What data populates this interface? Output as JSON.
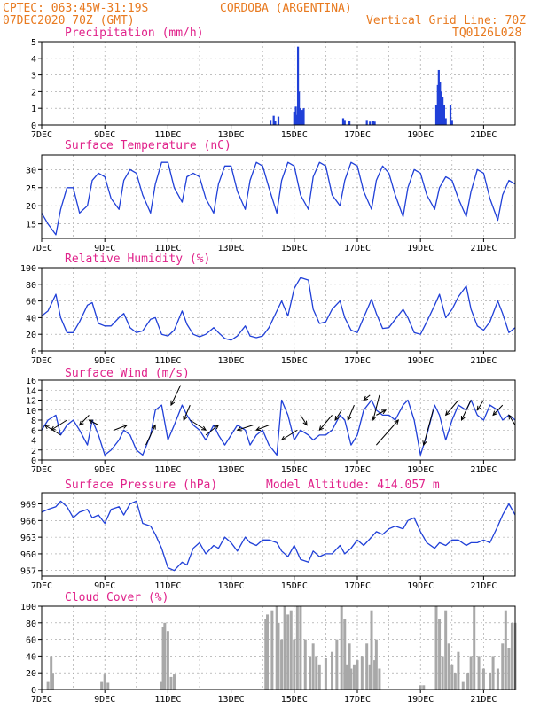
{
  "header": {
    "line1_left": "CPTEC:   063:45W-31:19S",
    "line1_right": "CORDOBA (ARGENTINA)",
    "line2_left": "07DEC2020 70Z (GMT)",
    "line2_right": "Vertical Grid Line: 70Z",
    "line3_right": "TQ0126L028"
  },
  "colors": {
    "header": "#e87a20",
    "panel_title": "#e0218a",
    "series_line": "#2040d8",
    "cloud_bar": "#a8a8a8"
  },
  "x_axis": {
    "tick_labels": [
      "7DEC",
      "9DEC",
      "11DEC",
      "13DEC",
      "15DEC",
      "17DEC",
      "19DEC",
      "21DEC"
    ],
    "tick_days": [
      7,
      9,
      11,
      13,
      15,
      17,
      19,
      21
    ],
    "range_days": [
      7,
      22
    ],
    "grid": "dotted vertical lines at 00Z each day"
  },
  "chart_data": [
    {
      "type": "bar",
      "title": "Precipitation (mm/h)",
      "ylim": [
        0,
        5
      ],
      "yticks": [
        0,
        1,
        2,
        3,
        4,
        5
      ],
      "color": "#2040d8",
      "x_days": [
        14.25,
        14.35,
        14.4,
        14.5,
        15.0,
        15.05,
        15.08,
        15.12,
        15.15,
        15.2,
        15.25,
        15.3,
        16.55,
        16.6,
        16.75,
        17.3,
        17.4,
        17.5,
        17.55,
        19.5,
        19.55,
        19.58,
        19.62,
        19.66,
        19.7,
        19.75,
        19.8,
        19.95,
        20.0
      ],
      "values": [
        0.3,
        0.55,
        0.25,
        0.5,
        0.8,
        1.1,
        0.6,
        4.7,
        2.0,
        1.0,
        0.9,
        1.0,
        0.4,
        0.3,
        0.25,
        0.3,
        0.2,
        0.25,
        0.2,
        1.2,
        2.4,
        3.3,
        2.6,
        2.0,
        1.7,
        1.2,
        0.4,
        1.2,
        0.3
      ]
    },
    {
      "type": "line",
      "title": "Surface Temperature (nC)",
      "ylim": [
        11,
        34
      ],
      "yticks": [
        15,
        20,
        25,
        30
      ],
      "color": "#2040d8",
      "x_days": [
        7.0,
        7.2,
        7.45,
        7.6,
        7.8,
        8.0,
        8.2,
        8.45,
        8.6,
        8.8,
        9.0,
        9.2,
        9.45,
        9.6,
        9.8,
        10.0,
        10.2,
        10.45,
        10.6,
        10.8,
        11.0,
        11.2,
        11.45,
        11.6,
        11.8,
        12.0,
        12.2,
        12.45,
        12.6,
        12.8,
        13.0,
        13.2,
        13.45,
        13.6,
        13.8,
        14.0,
        14.2,
        14.45,
        14.6,
        14.8,
        15.0,
        15.2,
        15.45,
        15.6,
        15.8,
        16.0,
        16.2,
        16.45,
        16.6,
        16.8,
        17.0,
        17.2,
        17.45,
        17.6,
        17.8,
        18.0,
        18.2,
        18.45,
        18.6,
        18.8,
        19.0,
        19.2,
        19.45,
        19.6,
        19.8,
        20.0,
        20.2,
        20.45,
        20.6,
        20.8,
        21.0,
        21.2,
        21.45,
        21.6,
        21.8,
        22.0
      ],
      "values": [
        18,
        15,
        12,
        19,
        25,
        25,
        18,
        20,
        27,
        29,
        28,
        22,
        19,
        27,
        30,
        29,
        23,
        18,
        26,
        32,
        32,
        25,
        21,
        28,
        29,
        28,
        22,
        18,
        26,
        31,
        31,
        24,
        19,
        27,
        32,
        31,
        25,
        18,
        27,
        32,
        31,
        23,
        19,
        28,
        32,
        31,
        23,
        20,
        27,
        32,
        31,
        24,
        19,
        27,
        31,
        29,
        23,
        17,
        25,
        30,
        29,
        23,
        19,
        25,
        28,
        27,
        22,
        17,
        24,
        30,
        29,
        22,
        16,
        23,
        27,
        26
      ]
    },
    {
      "type": "line",
      "title": "Relative Humidity (%)",
      "ylim": [
        0,
        100
      ],
      "yticks": [
        0,
        20,
        40,
        60,
        80,
        100
      ],
      "color": "#2040d8",
      "x_days": [
        7.0,
        7.2,
        7.45,
        7.6,
        7.8,
        8.0,
        8.2,
        8.45,
        8.6,
        8.8,
        9.0,
        9.2,
        9.45,
        9.6,
        9.8,
        10.0,
        10.2,
        10.45,
        10.6,
        10.8,
        11.0,
        11.2,
        11.45,
        11.6,
        11.8,
        12.0,
        12.2,
        12.45,
        12.6,
        12.8,
        13.0,
        13.2,
        13.45,
        13.6,
        13.8,
        14.0,
        14.2,
        14.45,
        14.6,
        14.8,
        15.0,
        15.2,
        15.45,
        15.6,
        15.8,
        16.0,
        16.2,
        16.45,
        16.6,
        16.8,
        17.0,
        17.2,
        17.45,
        17.6,
        17.8,
        18.0,
        18.2,
        18.45,
        18.6,
        18.8,
        19.0,
        19.2,
        19.45,
        19.6,
        19.8,
        20.0,
        20.2,
        20.45,
        20.6,
        20.8,
        21.0,
        21.2,
        21.45,
        21.6,
        21.8,
        22.0
      ],
      "values": [
        42,
        48,
        68,
        40,
        22,
        22,
        35,
        55,
        58,
        33,
        30,
        30,
        40,
        45,
        28,
        22,
        24,
        38,
        40,
        20,
        18,
        25,
        48,
        32,
        20,
        17,
        20,
        28,
        22,
        15,
        13,
        18,
        30,
        18,
        16,
        18,
        28,
        48,
        60,
        42,
        75,
        88,
        85,
        50,
        33,
        35,
        50,
        60,
        40,
        25,
        22,
        40,
        62,
        45,
        27,
        28,
        38,
        50,
        40,
        22,
        20,
        35,
        55,
        68,
        40,
        50,
        65,
        78,
        50,
        30,
        25,
        35,
        60,
        45,
        22,
        28
      ]
    },
    {
      "type": "line",
      "title": "Surface Wind (m/s)",
      "ylim": [
        0,
        16
      ],
      "yticks": [
        0,
        2,
        4,
        6,
        8,
        10,
        12,
        14,
        16
      ],
      "color": "#2040d8",
      "x_days": [
        7.0,
        7.2,
        7.45,
        7.6,
        7.8,
        8.0,
        8.2,
        8.45,
        8.6,
        8.8,
        9.0,
        9.2,
        9.45,
        9.6,
        9.8,
        10.0,
        10.2,
        10.45,
        10.6,
        10.8,
        11.0,
        11.2,
        11.45,
        11.6,
        11.8,
        12.0,
        12.2,
        12.45,
        12.6,
        12.8,
        13.0,
        13.2,
        13.45,
        13.6,
        13.8,
        14.0,
        14.2,
        14.45,
        14.6,
        14.8,
        15.0,
        15.2,
        15.45,
        15.6,
        15.8,
        16.0,
        16.2,
        16.45,
        16.6,
        16.8,
        17.0,
        17.2,
        17.45,
        17.6,
        17.8,
        18.0,
        18.2,
        18.45,
        18.6,
        18.8,
        19.0,
        19.2,
        19.45,
        19.6,
        19.8,
        20.0,
        20.2,
        20.45,
        20.6,
        20.8,
        21.0,
        21.2,
        21.45,
        21.6,
        21.8,
        22.0
      ],
      "values": [
        6,
        8,
        9,
        5,
        7,
        8,
        6,
        3,
        8,
        5,
        1,
        2,
        4,
        6,
        5,
        2,
        1,
        5,
        10,
        11,
        4,
        7,
        11,
        9,
        7,
        6,
        4,
        7,
        5,
        3,
        5,
        7,
        6,
        3,
        5,
        6,
        3,
        1,
        12,
        9,
        4,
        6,
        5,
        4,
        5,
        5,
        6,
        9,
        8,
        3,
        5,
        10,
        12,
        10,
        9,
        9,
        8,
        11,
        12,
        8,
        1,
        5,
        11,
        9,
        4,
        8,
        11,
        10,
        12,
        9,
        8,
        11,
        10,
        8,
        9,
        8
      ],
      "arrows_note": "black wind direction arrows drawn along the series"
    },
    {
      "type": "line",
      "title": "Surface Pressure (hPa)",
      "annotation": "Model Altitude: 414.057 m",
      "ylim": [
        956,
        971
      ],
      "yticks": [
        957,
        960,
        963,
        966,
        969
      ],
      "color": "#2040d8",
      "x_days": [
        7.0,
        7.2,
        7.45,
        7.6,
        7.8,
        8.0,
        8.2,
        8.45,
        8.6,
        8.8,
        9.0,
        9.2,
        9.45,
        9.6,
        9.8,
        10.0,
        10.2,
        10.45,
        10.6,
        10.8,
        11.0,
        11.2,
        11.45,
        11.6,
        11.8,
        12.0,
        12.2,
        12.45,
        12.6,
        12.8,
        13.0,
        13.2,
        13.45,
        13.6,
        13.8,
        14.0,
        14.2,
        14.45,
        14.6,
        14.8,
        15.0,
        15.2,
        15.45,
        15.6,
        15.8,
        16.0,
        16.2,
        16.45,
        16.6,
        16.8,
        17.0,
        17.2,
        17.45,
        17.6,
        17.8,
        18.0,
        18.2,
        18.45,
        18.6,
        18.8,
        19.0,
        19.2,
        19.45,
        19.6,
        19.8,
        20.0,
        20.2,
        20.45,
        20.6,
        20.8,
        21.0,
        21.2,
        21.45,
        21.6,
        21.8,
        22.0
      ],
      "values": [
        967.5,
        968,
        968.5,
        969.5,
        968.5,
        966.5,
        967.5,
        968,
        966.5,
        967,
        965.5,
        968,
        968.5,
        967,
        969,
        969.5,
        965.5,
        965,
        963.5,
        961,
        957.5,
        957,
        958.5,
        958,
        961,
        962,
        960,
        961.5,
        961,
        963,
        962,
        960.5,
        963,
        962,
        961.5,
        962.5,
        962.5,
        962,
        960.5,
        959.5,
        961.5,
        959,
        958.5,
        960.5,
        959.5,
        960,
        960,
        961.5,
        960,
        961,
        962.5,
        961.5,
        963,
        964,
        963.5,
        964.5,
        965,
        964.5,
        966,
        966.5,
        964,
        962,
        961,
        962,
        961.5,
        962.5,
        962.5,
        961.5,
        962,
        962,
        962.5,
        962,
        965,
        967,
        969,
        967
      ]
    },
    {
      "type": "bar",
      "title": "Cloud Cover (%)",
      "ylim": [
        0,
        100
      ],
      "yticks": [
        0,
        20,
        40,
        60,
        80,
        100
      ],
      "color": "#a8a8a8",
      "x_days": [
        7.2,
        7.3,
        7.35,
        8.9,
        9.0,
        9.1,
        10.8,
        10.85,
        10.9,
        11.0,
        11.1,
        11.2,
        14.1,
        14.15,
        14.3,
        14.45,
        14.5,
        14.6,
        14.7,
        14.8,
        14.9,
        15.0,
        15.1,
        15.2,
        15.35,
        15.5,
        15.6,
        15.7,
        15.8,
        16.0,
        16.2,
        16.35,
        16.5,
        16.6,
        16.65,
        16.75,
        16.8,
        16.9,
        17.0,
        17.15,
        17.3,
        17.4,
        17.45,
        17.55,
        17.6,
        17.7,
        19.0,
        19.1,
        19.5,
        19.6,
        19.7,
        19.8,
        19.9,
        20.0,
        20.1,
        20.2,
        20.35,
        20.5,
        20.6,
        20.7,
        20.85,
        21.0,
        21.2,
        21.3,
        21.45,
        21.6,
        21.7,
        21.8,
        21.9,
        22.0
      ],
      "values": [
        10,
        40,
        20,
        10,
        18,
        8,
        10,
        75,
        80,
        70,
        15,
        18,
        85,
        90,
        95,
        100,
        80,
        60,
        100,
        90,
        95,
        60,
        100,
        100,
        60,
        40,
        55,
        40,
        30,
        38,
        45,
        60,
        100,
        85,
        30,
        55,
        25,
        30,
        35,
        40,
        55,
        30,
        95,
        35,
        60,
        25,
        5,
        5,
        100,
        85,
        40,
        95,
        55,
        30,
        20,
        45,
        10,
        20,
        40,
        100,
        40,
        25,
        20,
        40,
        25,
        55,
        95,
        50,
        80,
        80
      ]
    }
  ]
}
